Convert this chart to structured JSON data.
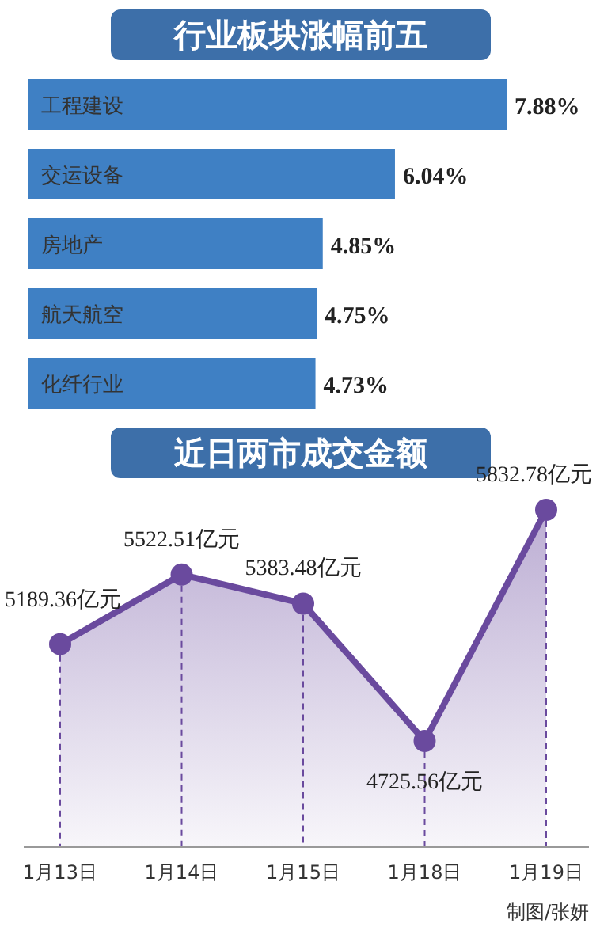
{
  "chart_data": [
    {
      "type": "bar",
      "title": "行业板块涨幅前五",
      "orientation": "horizontal",
      "categories": [
        "工程建设",
        "交运设备",
        "房地产",
        "航天航空",
        "化纤行业"
      ],
      "values": [
        7.88,
        6.04,
        4.85,
        4.75,
        4.73
      ],
      "value_labels": [
        "7.88%",
        "6.04%",
        "4.85%",
        "4.75%",
        "4.73%"
      ],
      "color": "#3f80c4"
    },
    {
      "type": "area",
      "title": "近日两市成交金额",
      "categories": [
        "1月13日",
        "1月14日",
        "1月15日",
        "1月18日",
        "1月19日"
      ],
      "values": [
        5189.36,
        5522.51,
        5383.48,
        4725.56,
        5832.78
      ],
      "value_labels": [
        "5189.36亿元",
        "5522.51亿元",
        "5383.48亿元",
        "4725.56亿元",
        "5832.78亿元"
      ],
      "color": "#6a4a9e",
      "marker": "circle",
      "ref_lines": [
        {
          "axis": "x",
          "value": "1月13日",
          "line_style": "dashed"
        },
        {
          "axis": "x",
          "value": "1月14日",
          "line_style": "dashed"
        },
        {
          "axis": "x",
          "value": "1月15日",
          "line_style": "dashed"
        },
        {
          "axis": "x",
          "value": "1月18日",
          "line_style": "dashed"
        },
        {
          "axis": "x",
          "value": "1月19日",
          "line_style": "dashed"
        }
      ],
      "annotations": [
        "制图/张妍"
      ]
    }
  ]
}
